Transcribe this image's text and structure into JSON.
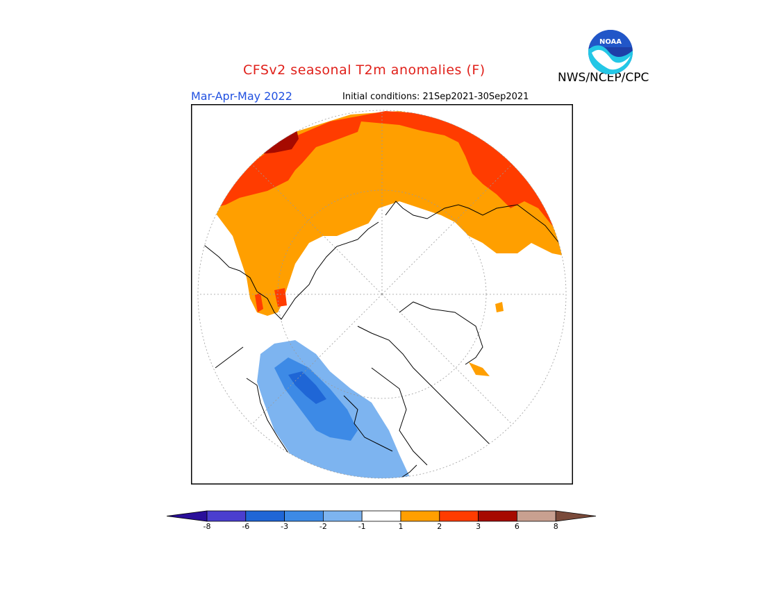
{
  "title": "CFSv2 seasonal T2m anomalies (F)",
  "agency": "NWS/NCEP/CPC",
  "logo_text": "NOAA",
  "season": "Mar-Apr-May 2022",
  "initial_conditions": "Initial conditions: 21Sep2021-30Sep2021",
  "colorbar": {
    "tick_labels": [
      "-8",
      "-6",
      "-3",
      "-2",
      "-1",
      "1",
      "2",
      "3",
      "6",
      "8"
    ],
    "colors": [
      "#2a0f9a",
      "#4a3ecf",
      "#1f66d6",
      "#3d8ae6",
      "#7db4f0",
      "#ffffff",
      "#ff9f00",
      "#ff3c00",
      "#a60a00",
      "#c8a090",
      "#7a4a3a"
    ]
  },
  "map": {
    "projection": "north polar stereographic",
    "legend_colors": {
      "warm_1_2": "#ff9f00",
      "warm_2_3": "#ff3c00",
      "warm_3_6": "#a60a00",
      "cool_-1_-2": "#7db4f0",
      "cool_-2_-3": "#3d8ae6",
      "cool_-3_-6": "#1f66d6"
    }
  }
}
